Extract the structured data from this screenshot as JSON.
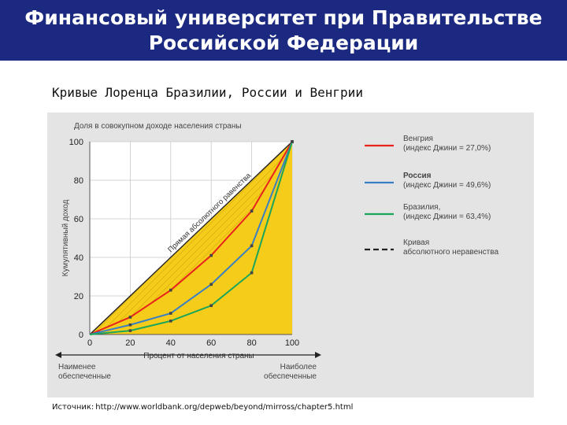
{
  "header": {
    "line1": "Финансовый университет при Правительстве",
    "line2": "Российской  Федерации"
  },
  "subtitle": "Кривые Лоренца Бразилии, России и Венгрии",
  "source": {
    "label": "Источник:",
    "url": "http://www.worldbank.org/depweb/beyond/mirross/chapter5.html"
  },
  "chart_data": {
    "type": "line",
    "title": "Доля в совокупном доходе населения страны",
    "ylabel": "Кумулятивный доход",
    "xlabel": "Процент от населения страны",
    "x_left_note": [
      "Наименее",
      "обеспеченные"
    ],
    "x_right_note": [
      "Наиболее",
      "обеспеченные"
    ],
    "diagonal_label": "Прямая абсолютного равенства",
    "xlim": [
      0,
      100
    ],
    "ylim": [
      0,
      100
    ],
    "x_ticks": [
      0,
      20,
      40,
      60,
      80,
      100
    ],
    "y_ticks": [
      0,
      20,
      40,
      60,
      80,
      100
    ],
    "x": [
      0,
      20,
      40,
      60,
      80,
      100
    ],
    "fill_color": "#f5cc1a",
    "series": [
      {
        "name_lines": [
          "Венгрия",
          "(индекс Джини = 27,0%)"
        ],
        "color": "#e8231c",
        "dashed": false,
        "bold": false,
        "values": [
          0,
          9,
          23,
          41,
          64,
          100
        ]
      },
      {
        "name_lines": [
          "Россия",
          "(индекс Джини = 49,6%)"
        ],
        "color": "#3a7fc4",
        "dashed": false,
        "bold": true,
        "values": [
          0,
          5,
          11,
          26,
          46,
          100
        ]
      },
      {
        "name_lines": [
          "Бразилия,",
          "(индекс Джини = 63,4%)"
        ],
        "color": "#1aa55a",
        "dashed": false,
        "bold": false,
        "values": [
          0,
          2,
          7,
          15,
          32,
          100
        ]
      },
      {
        "name_lines": [
          "Кривая",
          "абсолютного неравенства"
        ],
        "color": "#222222",
        "dashed": true,
        "bold": false,
        "values": null
      }
    ]
  }
}
